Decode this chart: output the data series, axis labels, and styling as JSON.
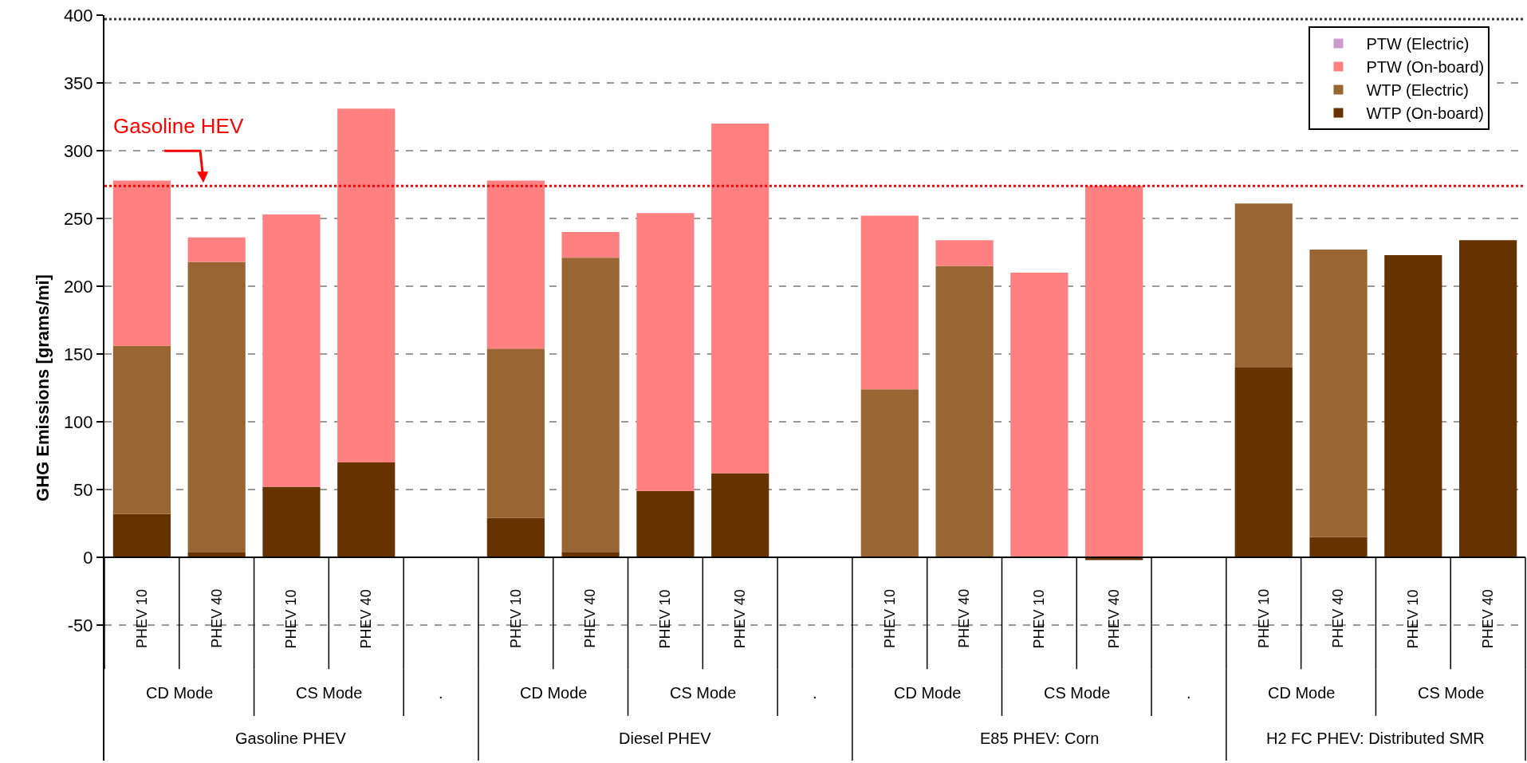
{
  "chart_data": {
    "type": "bar",
    "stacked": true,
    "ylabel": "GHG Emissions [grams/mi]",
    "categories": [
      "PHEV 10",
      "PHEV 40",
      "PHEV 10",
      "PHEV 40",
      null,
      "PHEV 10",
      "PHEV 40",
      "PHEV 10",
      "PHEV 40",
      null,
      "PHEV 10",
      "PHEV 40",
      "PHEV 10",
      "PHEV 40",
      null,
      "PHEV 10",
      "PHEV 40",
      "PHEV 10",
      "PHEV 40"
    ],
    "series": [
      {
        "name": "WTP (On-board)",
        "color": "#663300",
        "values": [
          32,
          4,
          52,
          70,
          null,
          29,
          4,
          49,
          62,
          null,
          0,
          0,
          0,
          -2,
          null,
          140,
          15,
          223,
          234
        ]
      },
      {
        "name": "WTP (Electric)",
        "color": "#996633",
        "values": [
          124,
          214,
          0,
          0,
          null,
          125,
          217,
          0,
          0,
          null,
          124,
          215,
          0,
          0,
          null,
          121,
          212,
          0,
          0
        ]
      },
      {
        "name": "PTW (On-board)",
        "color": "#ff8080",
        "values": [
          122,
          18,
          201,
          261,
          null,
          124,
          19,
          205,
          258,
          null,
          128,
          19,
          210,
          274,
          null,
          0,
          0,
          0,
          0
        ]
      },
      {
        "name": "PTW (Electric)",
        "color": "#cc99cc",
        "values": [
          0,
          0,
          0,
          0,
          null,
          0,
          0,
          0,
          0,
          null,
          0,
          0,
          0,
          0,
          null,
          0,
          0,
          0,
          0
        ]
      }
    ],
    "ylim": [
      -150,
      400
    ],
    "yticks": [
      -50,
      0,
      50,
      100,
      150,
      200,
      250,
      300,
      350,
      400
    ],
    "grid": "y",
    "legend": "top right",
    "ref_lines": [
      {
        "axis": "y",
        "value": 274,
        "label": "Gasoline HEV",
        "color": "#ff0000",
        "line_style": "dotted"
      },
      {
        "axis": "y",
        "value": 397,
        "color": "#333333",
        "line_style": "dotted"
      }
    ],
    "annotations": [
      "CD Mode",
      "CS Mode",
      ".",
      "Gasoline PHEV",
      "CD Mode",
      "CS Mode",
      ".",
      "Diesel PHEV",
      "CD Mode",
      "CS Mode",
      ".",
      "E85 PHEV: Corn",
      "CD Mode",
      "CS Mode",
      "H2 FC PHEV: Distributed SMR"
    ]
  }
}
